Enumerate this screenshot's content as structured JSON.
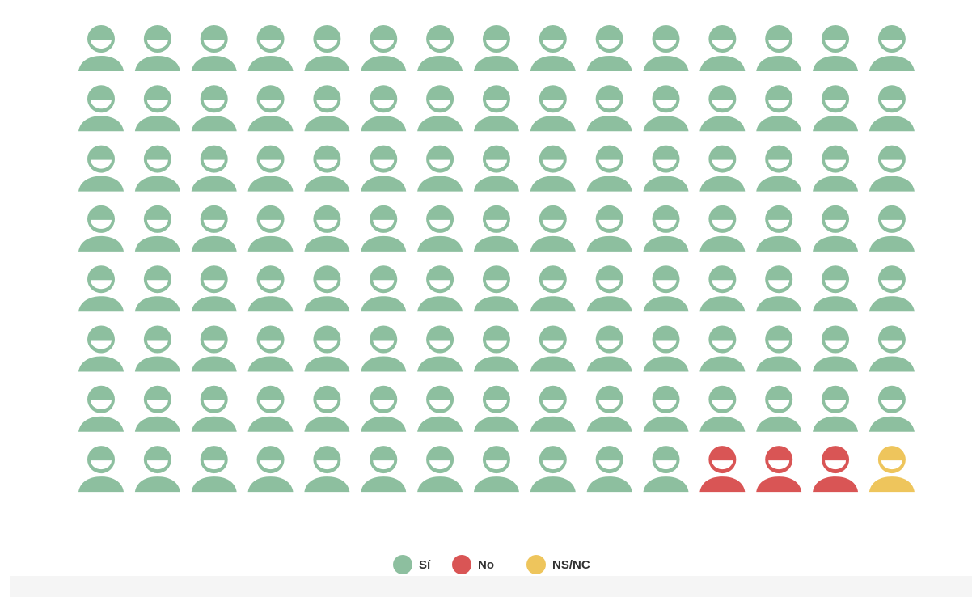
{
  "chart_data": {
    "type": "pictogram",
    "series": [
      {
        "name": "Sí",
        "color": "#8dbf9f",
        "values": [
          116
        ]
      },
      {
        "name": "No",
        "color": "#d95555",
        "values": [
          3
        ]
      },
      {
        "name": "NS/NC",
        "color": "#eec55c",
        "values": [
          1
        ]
      }
    ],
    "legend": "bottom"
  }
}
